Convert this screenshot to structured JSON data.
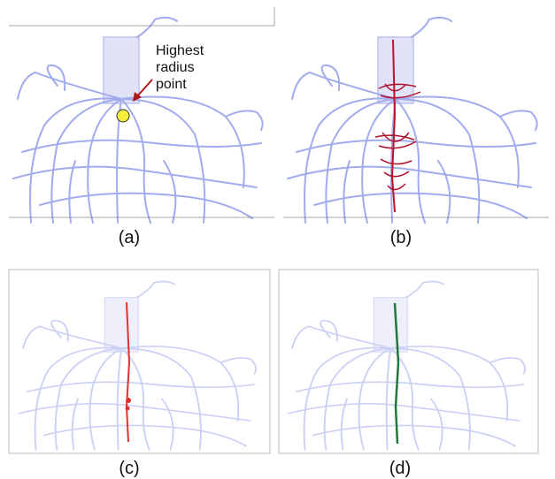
{
  "panels": [
    {
      "label": "(a)"
    },
    {
      "label": "(b)"
    },
    {
      "label": "(c)"
    },
    {
      "label": "(d)"
    }
  ],
  "annotation": {
    "lines": [
      "Highest",
      "radius",
      "point"
    ]
  }
}
